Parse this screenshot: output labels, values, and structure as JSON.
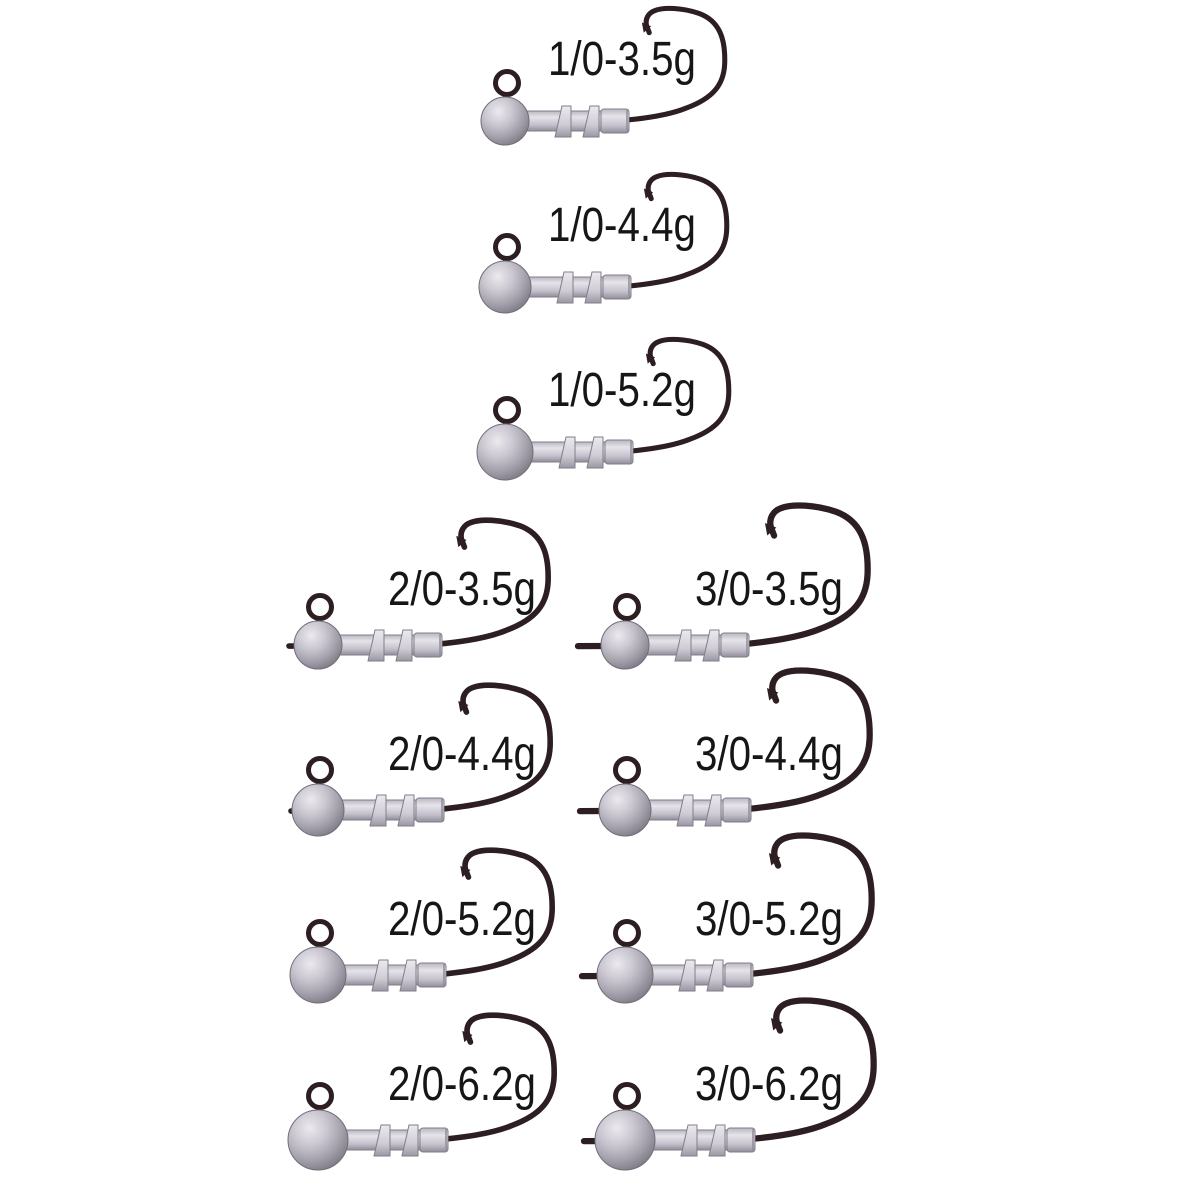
{
  "image_kind": "fishing jig head product photo grid",
  "colors": {
    "background": "#ffffff",
    "hook_wire": "#2d1e21",
    "ball_highlight": "#eceaee",
    "ball_light": "#c9c6d0",
    "ball_mid": "#a5a2ad",
    "ball_dark": "#7a7680",
    "collar_light": "#e6e4e9",
    "collar_mid": "#c3c0cb",
    "collar_dark": "#908d99",
    "collar_edge": "#817e8a",
    "label_text": "#161616"
  },
  "items": [
    {
      "label": "1/0-3.5g",
      "hook_size": "1/0",
      "weight": "3.5g"
    },
    {
      "label": "1/0-4.4g",
      "hook_size": "1/0",
      "weight": "4.4g"
    },
    {
      "label": "1/0-5.2g",
      "hook_size": "1/0",
      "weight": "5.2g"
    },
    {
      "label": "2/0-3.5g",
      "hook_size": "2/0",
      "weight": "3.5g"
    },
    {
      "label": "3/0-3.5g",
      "hook_size": "3/0",
      "weight": "3.5g"
    },
    {
      "label": "2/0-4.4g",
      "hook_size": "2/0",
      "weight": "4.4g"
    },
    {
      "label": "3/0-4.4g",
      "hook_size": "3/0",
      "weight": "4.4g"
    },
    {
      "label": "2/0-5.2g",
      "hook_size": "2/0",
      "weight": "5.2g"
    },
    {
      "label": "3/0-5.2g",
      "hook_size": "3/0",
      "weight": "5.2g"
    },
    {
      "label": "2/0-6.2g",
      "hook_size": "2/0",
      "weight": "6.2g"
    },
    {
      "label": "3/0-6.2g",
      "hook_size": "3/0",
      "weight": "6.2g"
    }
  ]
}
